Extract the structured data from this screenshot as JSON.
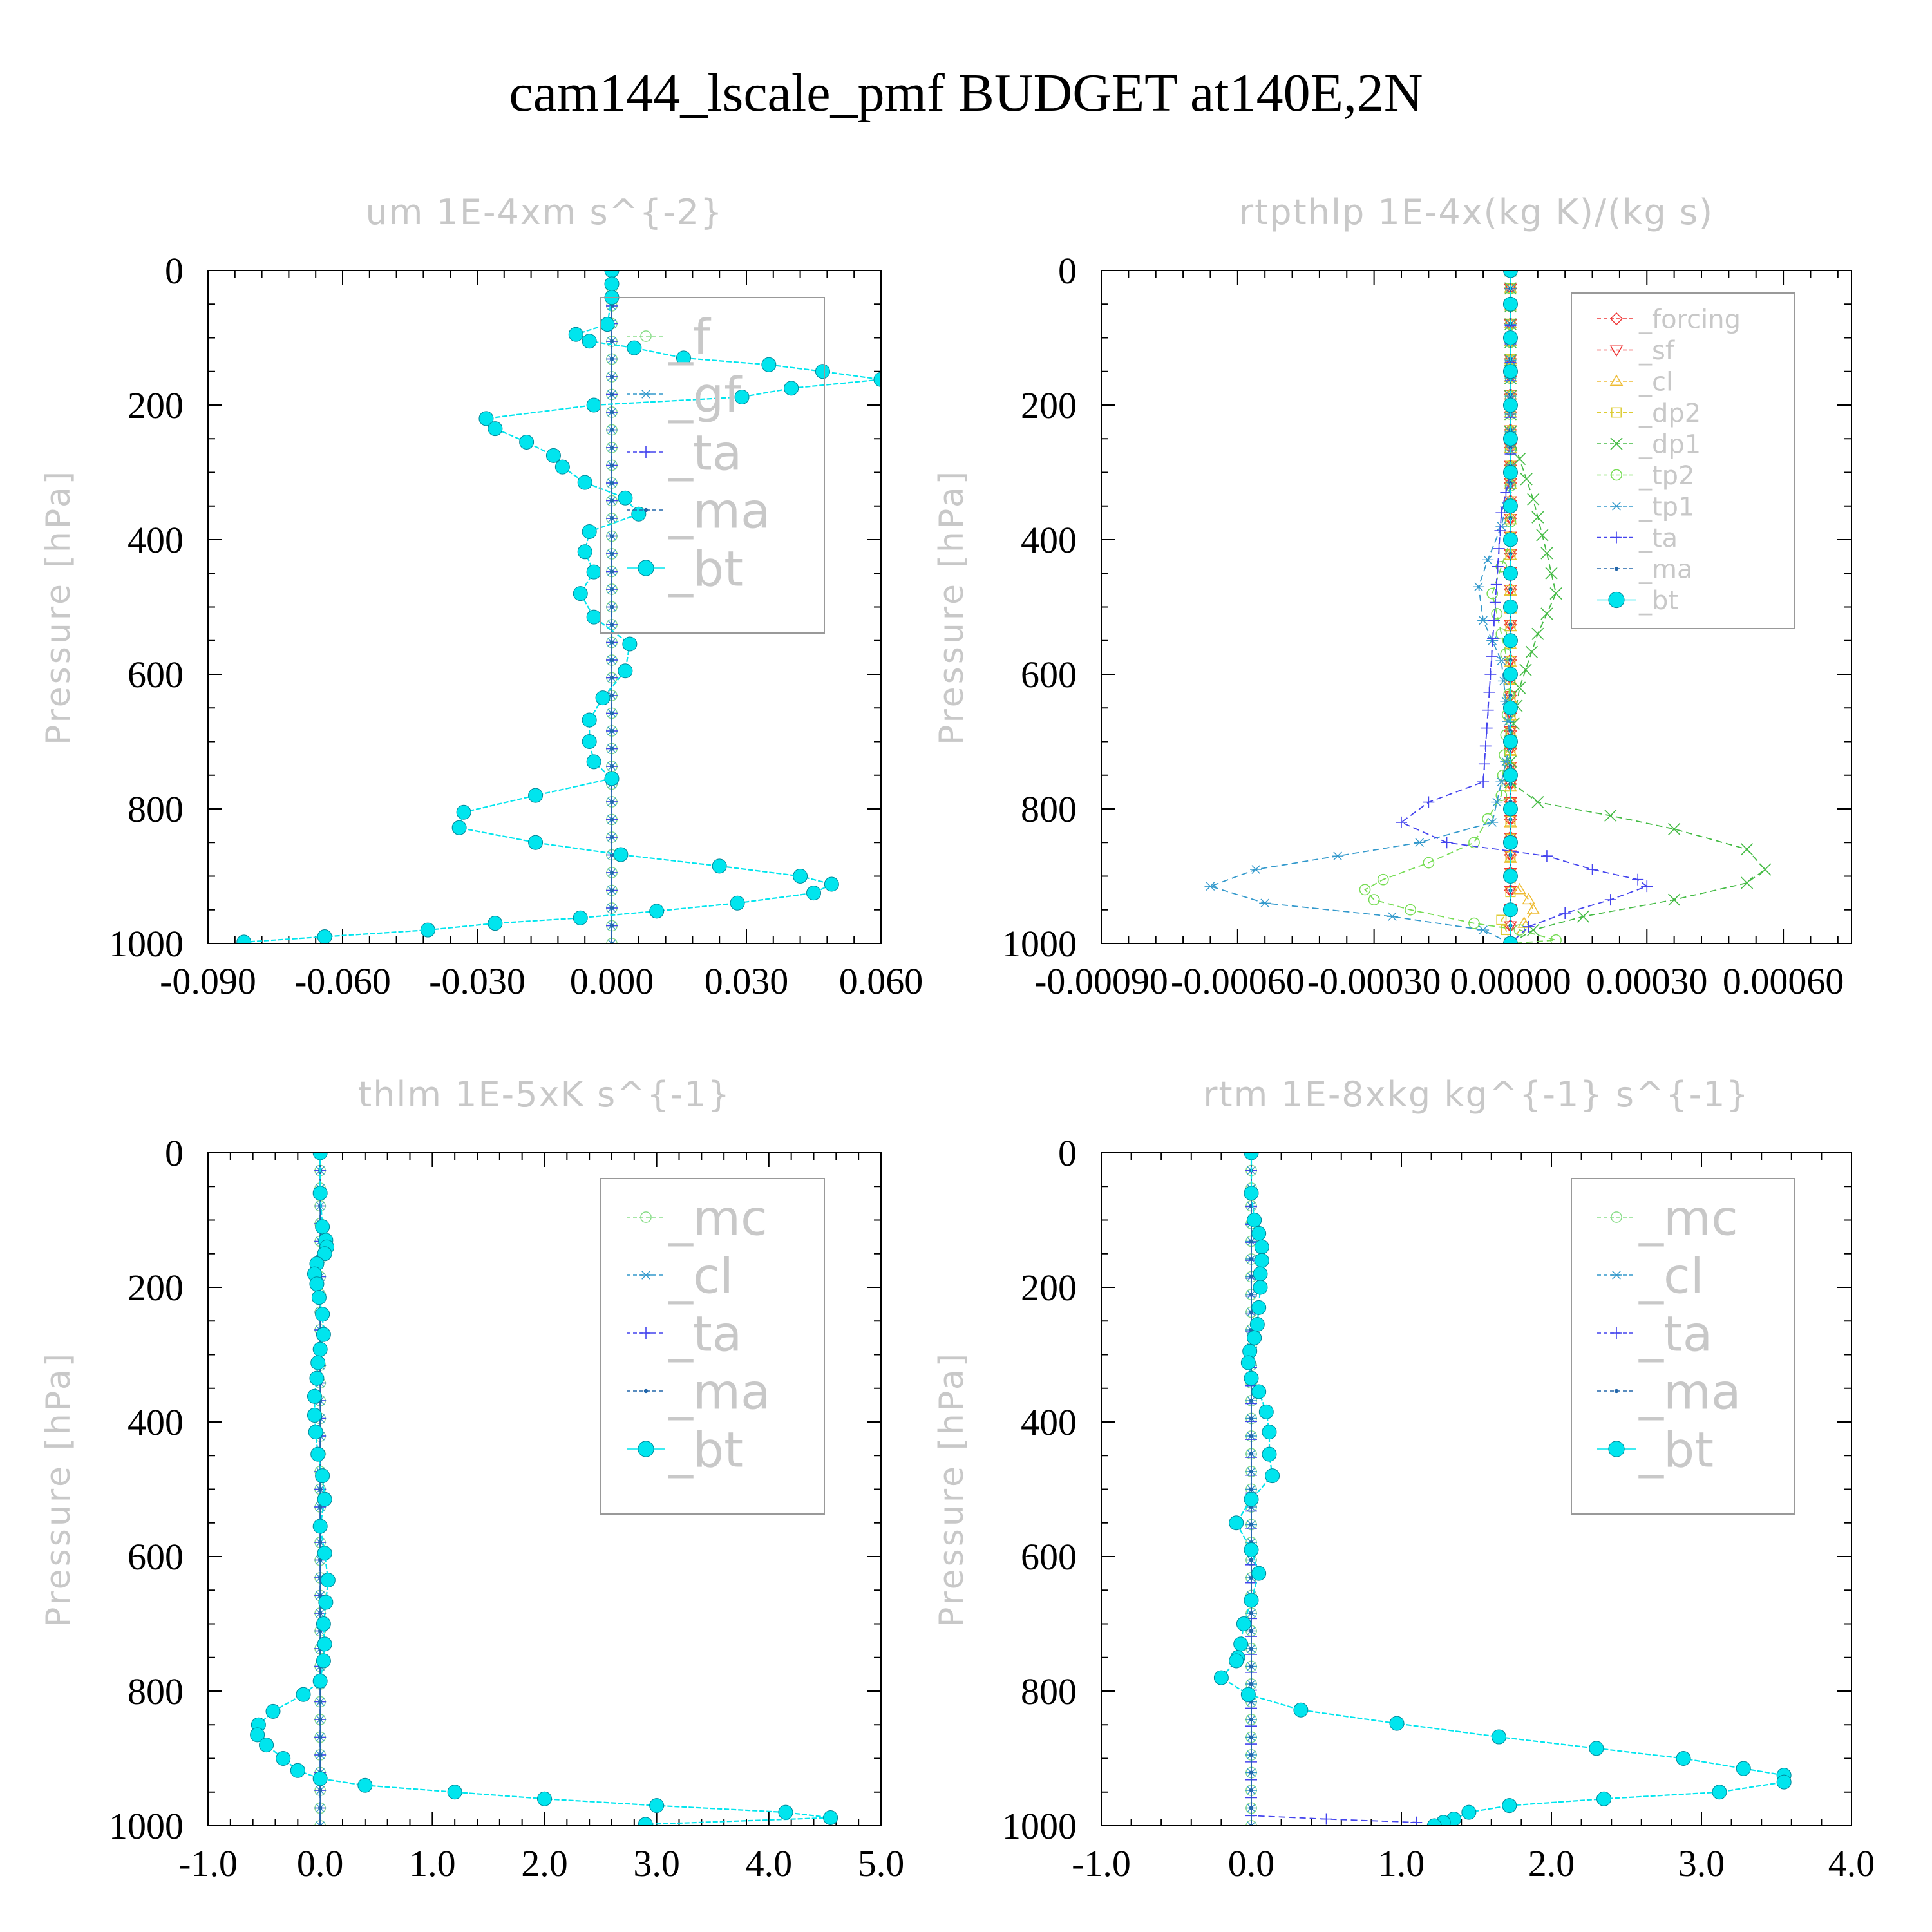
{
  "title": "cam144_lscale_pmf  BUDGET at140E,2N",
  "chart_data": [
    {
      "type": "line",
      "title": "um  1E-4xm s^{-2}",
      "ylabel": "Pressure [hPa]",
      "xlim": [
        -0.09,
        0.06
      ],
      "ylim": [
        1000,
        0
      ],
      "xticks": [
        -0.09,
        -0.06,
        -0.03,
        0.0,
        0.03,
        0.06
      ],
      "xtick_labels": [
        "-0.090",
        "-0.060",
        "-0.030",
        "0.000",
        "0.030",
        "0.060"
      ],
      "yticks": [
        0,
        200,
        400,
        600,
        800,
        1000
      ],
      "ytick_labels": [
        "0",
        "200",
        "400",
        "600",
        "800",
        "1000"
      ],
      "legend": {
        "entries": [
          "_f",
          "_gf",
          "_ta",
          "_ma",
          "_bt"
        ],
        "position": "top-right"
      },
      "series": [
        {
          "name": "_f",
          "color": "#88dd88",
          "marker": "circle",
          "x": [
            0.0,
            0.0
          ],
          "y": [
            0,
            1000
          ]
        },
        {
          "name": "_gf",
          "color": "#3399cc",
          "marker": "asterisk",
          "x": [
            0.0,
            0.0
          ],
          "y": [
            0,
            1000
          ]
        },
        {
          "name": "_ta",
          "color": "#4444ee",
          "marker": "plus",
          "x": [
            0.0,
            0.0
          ],
          "y": [
            0,
            1000
          ]
        },
        {
          "name": "_ma",
          "color": "#2266aa",
          "marker": "dot",
          "x": [
            0.0,
            0.0
          ],
          "y": [
            0,
            1000
          ]
        },
        {
          "name": "_bt",
          "color": "#00e5ee",
          "marker": "bigdot",
          "x": [
            0.0,
            0.0,
            0.0,
            -0.001,
            -0.008,
            -0.005,
            0.005,
            0.016,
            0.035,
            0.047,
            0.06,
            0.04,
            0.029,
            -0.004,
            -0.028,
            -0.026,
            -0.019,
            -0.013,
            -0.011,
            -0.006,
            0.003,
            0.006,
            -0.005,
            -0.006,
            -0.004,
            -0.007,
            -0.004,
            0.004,
            0.003,
            -0.002,
            -0.005,
            -0.005,
            -0.004,
            0.0,
            -0.017,
            -0.033,
            -0.034,
            -0.017,
            0.002,
            0.024,
            0.042,
            0.049,
            0.045,
            0.028,
            0.01,
            -0.007,
            -0.026,
            -0.041,
            -0.064,
            -0.082
          ],
          "y": [
            0,
            20,
            40,
            80,
            95,
            105,
            115,
            130,
            140,
            150,
            162,
            175,
            188,
            200,
            220,
            235,
            255,
            275,
            292,
            315,
            338,
            362,
            388,
            418,
            448,
            480,
            515,
            555,
            595,
            635,
            668,
            700,
            730,
            755,
            780,
            805,
            828,
            850,
            868,
            885,
            900,
            912,
            925,
            940,
            952,
            962,
            970,
            980,
            990,
            998
          ]
        }
      ]
    },
    {
      "type": "line",
      "title": "rtpthlp  1E-4x(kg K)/(kg s)",
      "ylabel": "Pressure [hPa]",
      "xlim": [
        -0.0009,
        0.00075
      ],
      "ylim": [
        1000,
        0
      ],
      "xticks": [
        -0.0009,
        -0.0006,
        -0.0003,
        0.0,
        0.0003,
        0.0006
      ],
      "xtick_labels": [
        "-0.00090",
        "-0.00060",
        "-0.00030",
        "0.00000",
        "0.00030",
        "0.00060"
      ],
      "yticks": [
        0,
        200,
        400,
        600,
        800,
        1000
      ],
      "ytick_labels": [
        "0",
        "200",
        "400",
        "600",
        "800",
        "1000"
      ],
      "legend": {
        "entries": [
          "_forcing",
          "_sf",
          "_cl",
          "_dp2",
          "_dp1",
          "_tp2",
          "_tp1",
          "_ta",
          "_ma",
          "_bt"
        ],
        "position": "top-right"
      },
      "series": [
        {
          "name": "_forcing",
          "color": "#ee3333",
          "marker": "diamond",
          "x": [
            0.0,
            0.0
          ],
          "y": [
            0,
            1000
          ]
        },
        {
          "name": "_sf",
          "color": "#ee3333",
          "marker": "triangle-down",
          "x": [
            0.0,
            0.0
          ],
          "y": [
            0,
            1000
          ]
        },
        {
          "name": "_cl",
          "color": "#eebb33",
          "marker": "triangle-up",
          "x": [
            0.0,
            0.0,
            2e-05,
            4e-05,
            5e-05,
            3e-05,
            0.0
          ],
          "y": [
            0,
            900,
            920,
            935,
            950,
            970,
            1000
          ]
        },
        {
          "name": "_dp2",
          "color": "#ddcc33",
          "marker": "square",
          "x": [
            0.0,
            0.0,
            -2e-05,
            -1e-05,
            0.0
          ],
          "y": [
            0,
            950,
            965,
            980,
            1000
          ]
        },
        {
          "name": "_dp1",
          "color": "#44bb44",
          "marker": "x",
          "x": [
            0.0,
            0.0,
            2e-05,
            5e-05,
            8e-05,
            0.0001,
            6e-05,
            2e-05,
            0.0,
            0.0,
            6e-05,
            0.00022,
            0.00036,
            0.00052,
            0.00056,
            0.00052,
            0.00036,
            0.00016,
            5e-05,
            0.0
          ],
          "y": [
            0,
            240,
            280,
            340,
            420,
            480,
            540,
            620,
            700,
            760,
            790,
            810,
            830,
            860,
            890,
            910,
            935,
            960,
            980,
            1000
          ]
        },
        {
          "name": "_tp2",
          "color": "#77dd55",
          "marker": "circle",
          "x": [
            0.0,
            0.0,
            -2e-05,
            -4e-05,
            -2e-05,
            0.0,
            -2e-05,
            -8e-05,
            -0.00018,
            -0.00028,
            -0.00032,
            -0.0003,
            -0.00022,
            -8e-05,
            2e-05,
            0.0001,
            0.0
          ],
          "y": [
            0,
            400,
            440,
            480,
            540,
            600,
            780,
            850,
            880,
            905,
            920,
            935,
            950,
            970,
            980,
            995,
            1000
          ]
        },
        {
          "name": "_tp1",
          "color": "#3399cc",
          "marker": "asterisk",
          "x": [
            0.0,
            0.0,
            -2e-05,
            -5e-05,
            -7e-05,
            -6e-05,
            -2e-05,
            0.0,
            -4e-05,
            -0.0002,
            -0.00038,
            -0.00056,
            -0.00066,
            -0.00054,
            -0.00026,
            -6e-05,
            0.0
          ],
          "y": [
            0,
            320,
            380,
            430,
            470,
            520,
            580,
            700,
            820,
            850,
            870,
            890,
            915,
            940,
            960,
            980,
            1000
          ]
        },
        {
          "name": "_ta",
          "color": "#4444ee",
          "marker": "plus",
          "x": [
            0.0,
            0.0,
            -2e-05,
            -6e-05,
            -0.00018,
            -0.00024,
            -0.00014,
            8e-05,
            0.00018,
            0.00028,
            0.0003,
            0.00022,
            0.00012,
            4e-05,
            0.0
          ],
          "y": [
            0,
            300,
            360,
            760,
            790,
            820,
            850,
            870,
            890,
            905,
            915,
            935,
            955,
            975,
            1000
          ]
        },
        {
          "name": "_ma",
          "color": "#2266aa",
          "marker": "dot",
          "x": [
            0.0,
            0.0
          ],
          "y": [
            0,
            1000
          ]
        },
        {
          "name": "_bt",
          "color": "#00e5ee",
          "marker": "bigdot",
          "x": [
            0.0,
            0.0,
            0.0,
            0.0,
            0.0,
            0.0,
            0.0,
            0.0,
            0.0,
            0.0,
            0.0,
            0.0,
            0.0,
            0.0,
            0.0,
            0.0,
            0.0,
            0.0,
            0.0,
            0.0,
            0.0
          ],
          "y": [
            0,
            50,
            100,
            150,
            200,
            250,
            300,
            350,
            400,
            450,
            500,
            550,
            600,
            650,
            700,
            750,
            800,
            850,
            900,
            950,
            1000
          ]
        }
      ]
    },
    {
      "type": "line",
      "title": "thlm  1E-5xK s^{-1}",
      "ylabel": "Pressure [hPa]",
      "xlim": [
        -1.0,
        5.0
      ],
      "ylim": [
        1000,
        0
      ],
      "xticks": [
        -1.0,
        0.0,
        1.0,
        2.0,
        3.0,
        4.0,
        5.0
      ],
      "xtick_labels": [
        "-1.0",
        "0.0",
        "1.0",
        "2.0",
        "3.0",
        "4.0",
        "5.0"
      ],
      "yticks": [
        0,
        200,
        400,
        600,
        800,
        1000
      ],
      "ytick_labels": [
        "0",
        "200",
        "400",
        "600",
        "800",
        "1000"
      ],
      "legend": {
        "entries": [
          "_mc",
          "_cl",
          "_ta",
          "_ma",
          "_bt"
        ],
        "position": "top-right"
      },
      "series": [
        {
          "name": "_mc",
          "color": "#88dd88",
          "marker": "circle",
          "x": [
            0.0,
            0.0
          ],
          "y": [
            0,
            1000
          ]
        },
        {
          "name": "_cl",
          "color": "#3399cc",
          "marker": "asterisk",
          "x": [
            0.0,
            0.0
          ],
          "y": [
            0,
            1000
          ]
        },
        {
          "name": "_ta",
          "color": "#4444ee",
          "marker": "plus",
          "x": [
            0.0,
            0.0
          ],
          "y": [
            0,
            1000
          ]
        },
        {
          "name": "_ma",
          "color": "#2266aa",
          "marker": "dot",
          "x": [
            0.0,
            0.0
          ],
          "y": [
            0,
            1000
          ]
        },
        {
          "name": "_bt",
          "color": "#00e5ee",
          "marker": "bigdot",
          "x": [
            0.0,
            0.0,
            0.02,
            0.05,
            0.06,
            0.04,
            -0.03,
            -0.05,
            -0.03,
            -0.01,
            0.02,
            0.03,
            0.0,
            -0.02,
            -0.03,
            -0.05,
            -0.05,
            -0.04,
            -0.02,
            0.02,
            0.04,
            0.0,
            0.04,
            0.07,
            0.05,
            0.03,
            0.04,
            0.03,
            0.0,
            -0.15,
            -0.42,
            -0.55,
            -0.56,
            -0.48,
            -0.33,
            -0.2,
            0.0,
            0.4,
            1.2,
            2.0,
            3.0,
            4.15,
            4.55,
            2.9
          ],
          "y": [
            0,
            60,
            110,
            130,
            140,
            150,
            165,
            180,
            195,
            215,
            240,
            270,
            292,
            312,
            335,
            362,
            390,
            415,
            448,
            480,
            515,
            555,
            595,
            635,
            668,
            700,
            730,
            755,
            785,
            805,
            830,
            850,
            865,
            880,
            900,
            918,
            930,
            940,
            950,
            960,
            970,
            980,
            988,
            998
          ]
        }
      ]
    },
    {
      "type": "line",
      "title": "rtm  1E-8xkg kg^{-1} s^{-1}",
      "ylabel": "Pressure [hPa]",
      "xlim": [
        -1.0,
        4.0
      ],
      "ylim": [
        1000,
        0
      ],
      "xticks": [
        -1.0,
        0.0,
        1.0,
        2.0,
        3.0,
        4.0
      ],
      "xtick_labels": [
        "-1.0",
        "0.0",
        "1.0",
        "2.0",
        "3.0",
        "4.0"
      ],
      "yticks": [
        0,
        200,
        400,
        600,
        800,
        1000
      ],
      "ytick_labels": [
        "0",
        "200",
        "400",
        "600",
        "800",
        "1000"
      ],
      "legend": {
        "entries": [
          "_mc",
          "_cl",
          "_ta",
          "_ma",
          "_bt"
        ],
        "position": "top-right"
      },
      "series": [
        {
          "name": "_mc",
          "color": "#88dd88",
          "marker": "circle",
          "x": [
            0.0,
            0.0
          ],
          "y": [
            0,
            1000
          ]
        },
        {
          "name": "_cl",
          "color": "#3399cc",
          "marker": "asterisk",
          "x": [
            0.0,
            0.0
          ],
          "y": [
            0,
            1000
          ]
        },
        {
          "name": "_ta",
          "color": "#4444ee",
          "marker": "plus",
          "x": [
            0.0,
            0.0,
            0.5,
            1.1
          ],
          "y": [
            0,
            985,
            990,
            995
          ]
        },
        {
          "name": "_ma",
          "color": "#2266aa",
          "marker": "dot",
          "x": [
            0.0,
            0.0
          ],
          "y": [
            0,
            1000
          ]
        },
        {
          "name": "_bt",
          "color": "#00e5ee",
          "marker": "bigdot",
          "x": [
            0.0,
            0.0,
            0.02,
            0.05,
            0.07,
            0.07,
            0.06,
            0.06,
            0.05,
            0.04,
            0.02,
            -0.01,
            -0.02,
            0.0,
            0.05,
            0.1,
            0.12,
            0.12,
            0.14,
            0.0,
            -0.1,
            0.0,
            0.05,
            0.0,
            -0.05,
            -0.07,
            -0.09,
            -0.1,
            -0.2,
            -0.02,
            0.33,
            0.97,
            1.65,
            2.3,
            2.88,
            3.28,
            3.55,
            3.55,
            3.12,
            2.35,
            1.72,
            1.45,
            1.35,
            1.28,
            1.22
          ],
          "y": [
            0,
            60,
            100,
            120,
            140,
            160,
            180,
            200,
            230,
            255,
            275,
            295,
            312,
            335,
            355,
            385,
            415,
            448,
            480,
            515,
            550,
            590,
            625,
            665,
            700,
            730,
            750,
            755,
            780,
            805,
            828,
            848,
            868,
            885,
            900,
            915,
            925,
            935,
            950,
            960,
            970,
            980,
            990,
            995,
            1000
          ]
        }
      ]
    }
  ]
}
